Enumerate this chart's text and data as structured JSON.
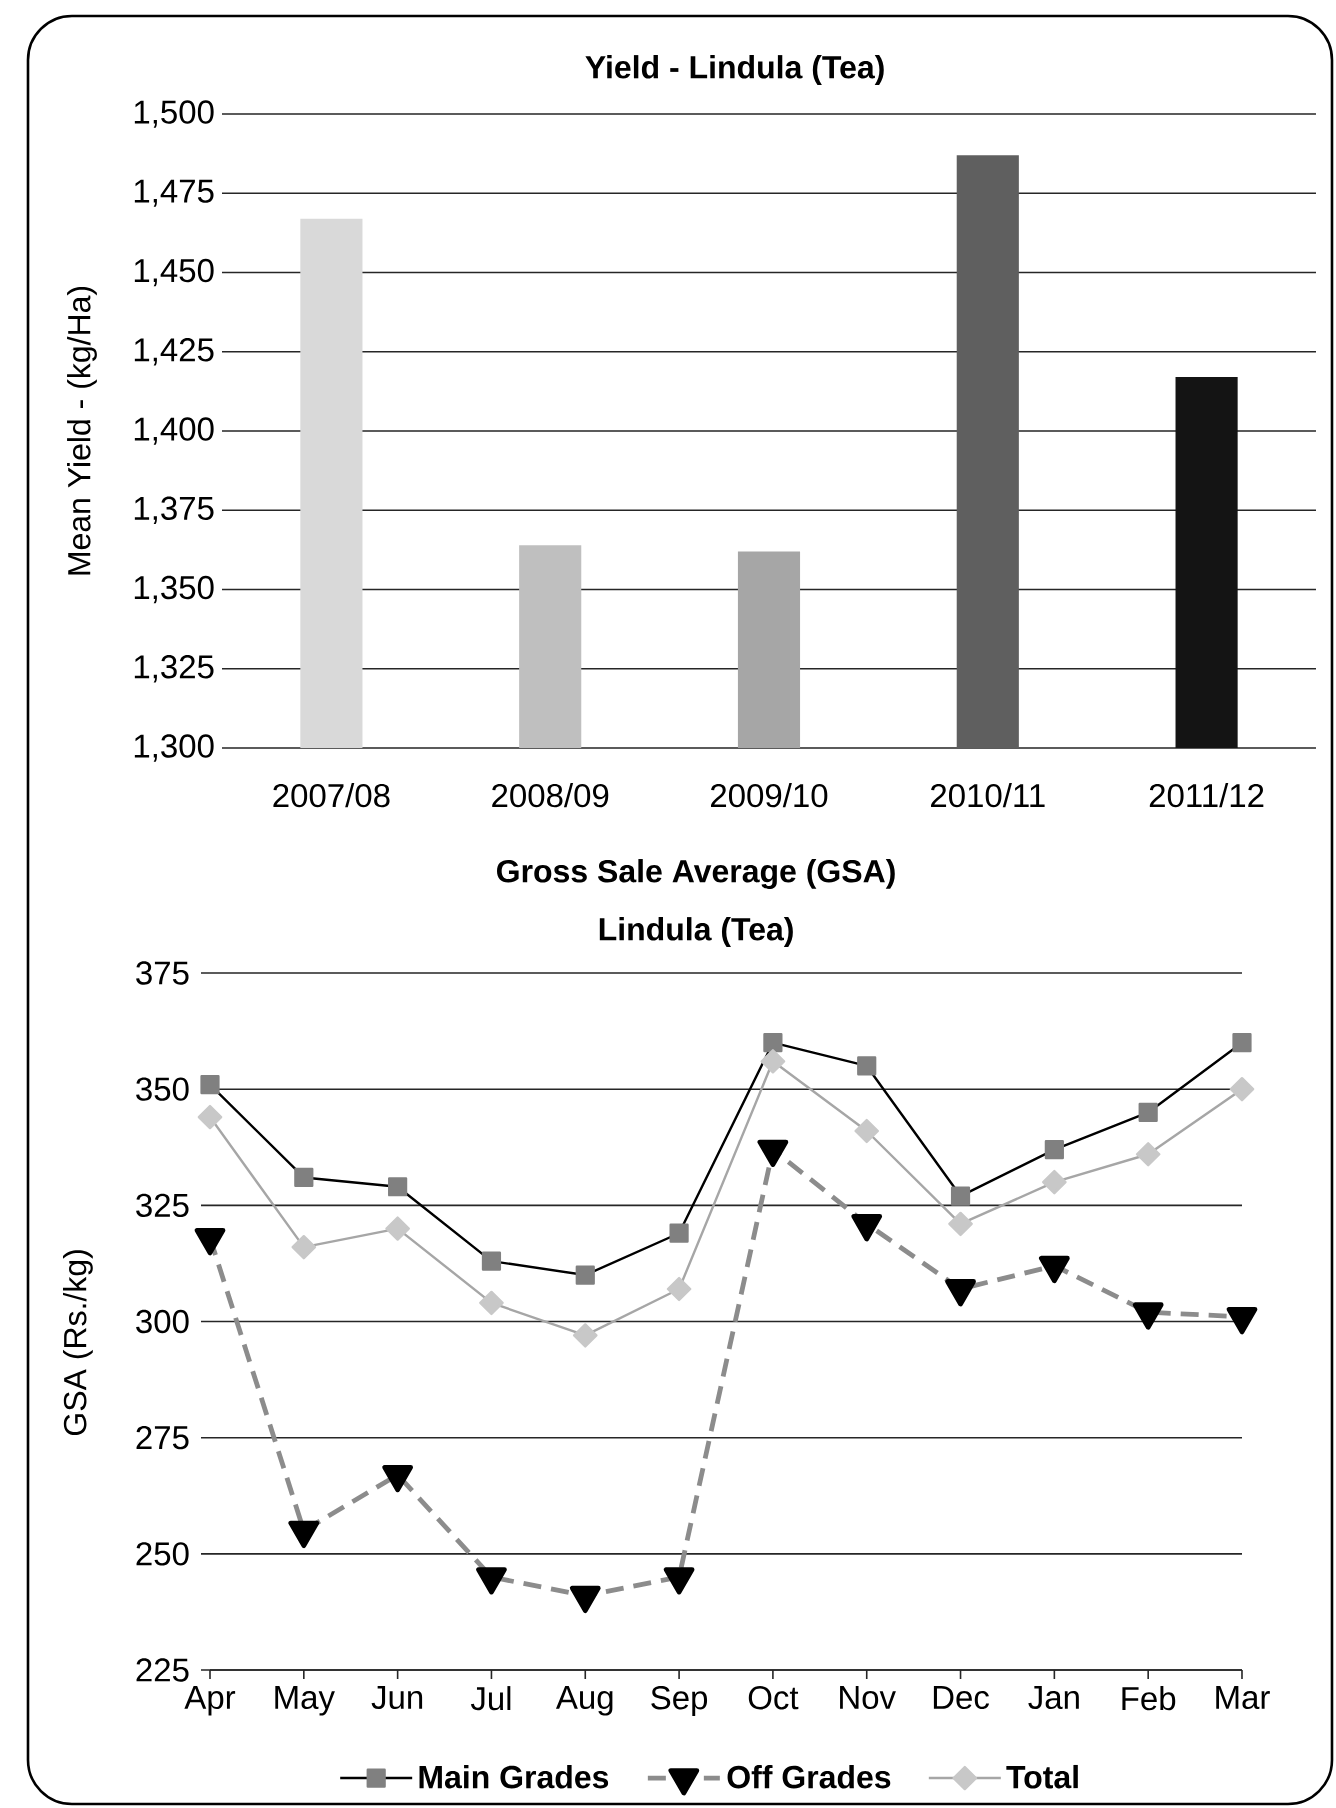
{
  "chart_data": [
    {
      "type": "bar",
      "title": "Yield - Lindula (Tea)",
      "ylabel": "Mean Yield - (kg/Ha)",
      "categories": [
        "2007/08",
        "2008/09",
        "2009/10",
        "2010/11",
        "2011/12"
      ],
      "values": [
        1467,
        1364,
        1362,
        1487,
        1417
      ],
      "colors": [
        "#d9d9d9",
        "#bfbfbf",
        "#a6a6a6",
        "#5f5f5f",
        "#141414"
      ],
      "ylim": [
        1300,
        1500
      ],
      "yticks": [
        {
          "value": 1300,
          "label": "1,300"
        },
        {
          "value": 1325,
          "label": "1,325"
        },
        {
          "value": 1350,
          "label": "1,350"
        },
        {
          "value": 1375,
          "label": "1,375"
        },
        {
          "value": 1400,
          "label": "1,400"
        },
        {
          "value": 1425,
          "label": "1,425"
        },
        {
          "value": 1450,
          "label": "1,450"
        },
        {
          "value": 1475,
          "label": "1,475"
        },
        {
          "value": 1500,
          "label": "1,500"
        }
      ],
      "grid": "y"
    },
    {
      "type": "line",
      "title": "Gross Sale Average (GSA)",
      "subtitle": "Lindula (Tea)",
      "ylabel": "GSA (Rs./kg)",
      "categories": [
        "Apr",
        "May",
        "Jun",
        "Jul",
        "Aug",
        "Sep",
        "Oct",
        "Nov",
        "Dec",
        "Jan",
        "Feb",
        "Mar"
      ],
      "series": [
        {
          "name": "Main Grades",
          "color": "#000000",
          "colors": [
            "#808080",
            "#808080",
            "#808080",
            "#808080",
            "#808080",
            "#808080",
            "#808080",
            "#808080",
            "#808080",
            "#808080",
            "#808080",
            "#808080"
          ],
          "marker": "square",
          "line_style": "solid",
          "values": [
            351,
            331,
            329,
            313,
            310,
            319,
            360,
            355,
            327,
            337,
            345,
            360
          ]
        },
        {
          "name": "Off Grades",
          "color": "#8c8c8c",
          "colors": [
            "#000000",
            "#000000",
            "#000000",
            "#000000",
            "#000000",
            "#000000",
            "#000000",
            "#000000",
            "#000000",
            "#000000",
            "#000000",
            "#000000"
          ],
          "marker": "triangle",
          "line_style": "dashed",
          "values": [
            318,
            255,
            267,
            245,
            241,
            245,
            337,
            321,
            307,
            312,
            302,
            301
          ]
        },
        {
          "name": "Total",
          "color": "#a6a6a6",
          "colors": [
            "#c8c8c8",
            "#c8c8c8",
            "#c8c8c8",
            "#c8c8c8",
            "#c8c8c8",
            "#c8c8c8",
            "#c8c8c8",
            "#c8c8c8",
            "#c8c8c8",
            "#c8c8c8",
            "#c8c8c8",
            "#c8c8c8"
          ],
          "marker": "diamond",
          "line_style": "solid",
          "values": [
            344,
            316,
            320,
            304,
            297,
            307,
            356,
            341,
            321,
            330,
            336,
            350
          ]
        }
      ],
      "ylim": [
        225,
        375
      ],
      "yticks": [
        225,
        250,
        275,
        300,
        325,
        350,
        375
      ],
      "grid": "y",
      "legend": "bottom"
    }
  ]
}
